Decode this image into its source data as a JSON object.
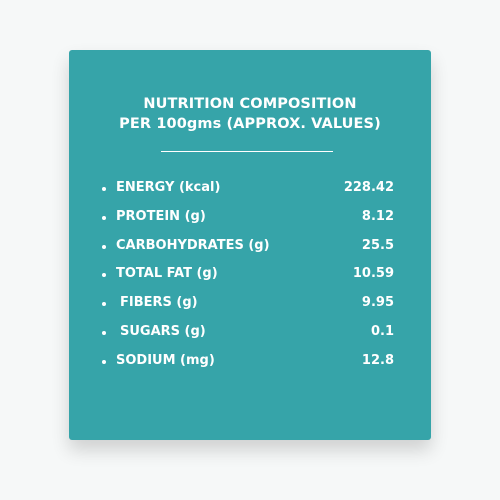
{
  "panel": {
    "title_line1": "NUTRITION COMPOSITION",
    "title_line2": "PER 100gms (APPROX. VALUES)"
  },
  "nutrients": [
    {
      "label": "ENERGY (kcal)",
      "value": "228.42"
    },
    {
      "label": "PROTEIN (g)",
      "value": "8.12"
    },
    {
      "label": "CARBOHYDRATES (g)",
      "value": "25.5"
    },
    {
      "label": "TOTAL FAT (g)",
      "value": "10.59"
    },
    {
      "label": "FIBERS (g)",
      "value": "9.95"
    },
    {
      "label": "SUGARS (g)",
      "value": "0.1"
    },
    {
      "label": "SODIUM (mg)",
      "value": "12.8"
    }
  ],
  "colors": {
    "background": "#f6f8f8",
    "panel": "#36a4a9",
    "text": "#ffffff"
  }
}
